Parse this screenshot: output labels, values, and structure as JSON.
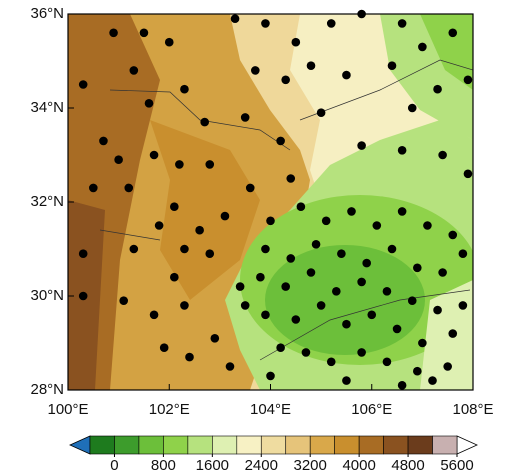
{
  "map": {
    "xlim": [
      100,
      108
    ],
    "ylim": [
      28,
      36
    ],
    "xticks": [
      {
        "value": 100,
        "label": "100°E"
      },
      {
        "value": 102,
        "label": "102°E"
      },
      {
        "value": 104,
        "label": "104°E"
      },
      {
        "value": 106,
        "label": "106°E"
      },
      {
        "value": 108,
        "label": "108°E"
      }
    ],
    "yticks": [
      {
        "value": 28,
        "label": "28°N"
      },
      {
        "value": 30,
        "label": "30°N"
      },
      {
        "value": 32,
        "label": "32°N"
      },
      {
        "value": 34,
        "label": "34°N"
      },
      {
        "value": 36,
        "label": "36°N"
      }
    ],
    "stations": {
      "color": "#000000",
      "lon": [
        100.3,
        100.9,
        101.5,
        101.3,
        102.0,
        101.6,
        102.3,
        100.7,
        101.0,
        101.7,
        102.2,
        102.7,
        100.5,
        101.2,
        102.1,
        102.8,
        101.8,
        100.3,
        101.3,
        102.3,
        102.6,
        103.1,
        100.3,
        101.1,
        101.7,
        102.1,
        102.3,
        102.8,
        101.9,
        102.4,
        102.9,
        103.2,
        103.5,
        103.4,
        103.3,
        103.9,
        104.5,
        105.2,
        105.8,
        106.6,
        103.7,
        104.3,
        104.8,
        105.5,
        106.4,
        107.0,
        107.6,
        107.9,
        107.3,
        106.8,
        103.5,
        104.2,
        105.0,
        105.8,
        106.6,
        107.4,
        107.9,
        103.6,
        104.4,
        104.0,
        104.6,
        105.1,
        105.6,
        106.1,
        106.6,
        107.1,
        107.6,
        103.9,
        104.4,
        104.9,
        105.4,
        105.9,
        106.4,
        106.9,
        107.4,
        107.8,
        103.8,
        104.3,
        104.8,
        105.3,
        105.8,
        106.3,
        106.8,
        107.3,
        107.8,
        103.9,
        104.5,
        105.0,
        105.5,
        106.0,
        106.5,
        107.0,
        107.6,
        104.2,
        104.7,
        105.2,
        105.8,
        106.3,
        106.9,
        107.5,
        104.0,
        105.5,
        106.6,
        107.2
      ],
      "lat": [
        34.5,
        35.6,
        35.6,
        34.8,
        35.4,
        34.1,
        34.4,
        33.3,
        32.9,
        33.0,
        32.8,
        33.7,
        32.3,
        32.3,
        31.9,
        32.8,
        31.5,
        30.9,
        31.0,
        31.0,
        31.4,
        31.7,
        30.0,
        29.9,
        29.6,
        30.4,
        29.8,
        30.9,
        28.9,
        28.7,
        29.1,
        28.5,
        29.8,
        30.2,
        35.9,
        35.8,
        35.4,
        35.8,
        36.0,
        35.8,
        34.8,
        34.6,
        34.9,
        34.7,
        34.9,
        35.3,
        35.6,
        34.6,
        34.4,
        34.0,
        33.8,
        33.3,
        33.9,
        33.2,
        33.1,
        33.0,
        32.6,
        32.3,
        32.5,
        31.6,
        31.9,
        31.6,
        31.8,
        31.5,
        31.8,
        31.5,
        31.3,
        31.0,
        30.8,
        31.1,
        30.9,
        30.7,
        31.0,
        30.6,
        30.5,
        30.9,
        30.4,
        30.2,
        30.5,
        30.1,
        30.3,
        30.1,
        29.9,
        29.7,
        29.8,
        29.6,
        29.5,
        29.8,
        29.4,
        29.6,
        29.3,
        29.0,
        29.2,
        28.9,
        28.8,
        28.6,
        28.8,
        28.6,
        28.4,
        28.5,
        28.3,
        28.2,
        28.1,
        28.2
      ]
    }
  },
  "colorbar": {
    "clim": [
      -400,
      5600
    ],
    "ticks": [
      0,
      800,
      1600,
      2400,
      3200,
      4000,
      4800,
      5600
    ],
    "colors": [
      "#1e7b1e",
      "#3d9c2c",
      "#6cbf3a",
      "#8fd24a",
      "#b6e27e",
      "#def0b2",
      "#f7f1c4",
      "#efdca0",
      "#e6c47a",
      "#d9a84a",
      "#c98f2e",
      "#a86c24",
      "#8a5220",
      "#6b3c1c",
      "#c8b0b0"
    ],
    "under_color": "#1f6fb8",
    "over_color": "#ffffff"
  }
}
